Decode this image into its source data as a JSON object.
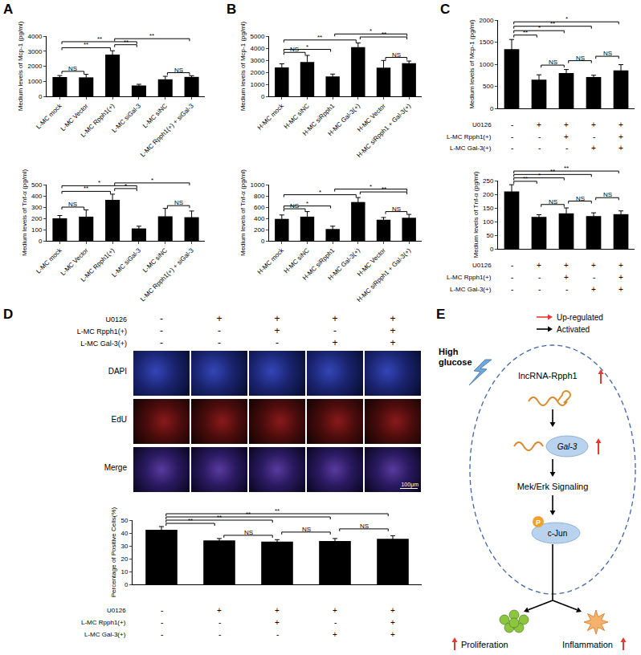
{
  "panel_labels": [
    "A",
    "B",
    "C",
    "D",
    "E"
  ],
  "chart_data": [
    {
      "type": "bar",
      "color": "#000000",
      "y_label": "Medium levels of Mcp-1 (pg/ml)",
      "categories": [
        "L-MC mock",
        "L-MC Vector",
        "L-MC Rpph1(+)",
        "L-MC siGal-3",
        "L-MC siNC",
        "L-MC Rpph1(+) + siGal-3"
      ],
      "values": [
        1280,
        1260,
        2780,
        720,
        1130,
        1290
      ],
      "errors": [
        100,
        200,
        250,
        80,
        200,
        80
      ],
      "ylim": [
        0,
        4000
      ],
      "yticks": [
        0,
        1000,
        2000,
        3000,
        4000
      ],
      "comparisons": [
        {
          "from": 0,
          "to": 1,
          "label": "NS"
        },
        {
          "from": 4,
          "to": 5,
          "label": "NS"
        },
        {
          "from": 0,
          "to": 2,
          "label": "**"
        },
        {
          "from": 2,
          "to": 3,
          "label": "**"
        },
        {
          "from": 0,
          "to": 3,
          "label": "**"
        },
        {
          "from": 2,
          "to": 5,
          "label": "**"
        }
      ]
    },
    {
      "type": "bar",
      "color": "#000000",
      "y_label": "Medium levels of Tnf-α (pg/ml)",
      "categories": [
        "L-MC mock",
        "L-MC Vector",
        "L-MC Rpph1(+)",
        "L-MC siGal-3",
        "L-MC siNC",
        "L-MC Rpph1(+) + siGal-3"
      ],
      "values": [
        200,
        215,
        365,
        110,
        218,
        210
      ],
      "errors": [
        25,
        60,
        50,
        20,
        70,
        55
      ],
      "ylim": [
        0,
        500
      ],
      "yticks": [
        0,
        100,
        200,
        300,
        400,
        500
      ],
      "comparisons": [
        {
          "from": 0,
          "to": 1,
          "label": "NS"
        },
        {
          "from": 4,
          "to": 5,
          "label": "NS"
        },
        {
          "from": 0,
          "to": 2,
          "label": "**"
        },
        {
          "from": 2,
          "to": 3,
          "label": "*"
        },
        {
          "from": 0,
          "to": 3,
          "label": "*"
        },
        {
          "from": 2,
          "to": 5,
          "label": "*"
        }
      ]
    },
    {
      "type": "bar",
      "color": "#000000",
      "y_label": "Medium levels of Mcp-1 (pg/ml)",
      "categories": [
        "H-MC mock",
        "H-MC siNC",
        "H-MC siRpph1",
        "H-MC Gal-3(+)",
        "H-MC Vector",
        "H-MC siRpph1 + Gal-3(+)"
      ],
      "values": [
        2400,
        2850,
        1650,
        4080,
        2380,
        2750
      ],
      "errors": [
        300,
        550,
        200,
        350,
        600,
        180
      ],
      "ylim": [
        0,
        5000
      ],
      "yticks": [
        0,
        1000,
        2000,
        3000,
        4000,
        5000
      ],
      "comparisons": [
        {
          "from": 0,
          "to": 1,
          "label": "NS"
        },
        {
          "from": 4,
          "to": 5,
          "label": "NS"
        },
        {
          "from": 0,
          "to": 2,
          "label": "*"
        },
        {
          "from": 0,
          "to": 3,
          "label": "**"
        },
        {
          "from": 3,
          "to": 5,
          "label": "**"
        },
        {
          "from": 2,
          "to": 5,
          "label": "*"
        }
      ]
    },
    {
      "type": "bar",
      "color": "#000000",
      "y_label": "Medium levels of Tnf-α (pg/ml)",
      "categories": [
        "H-MC mock",
        "H-MC siNC",
        "H-MC siRpph1",
        "H-MC Gal-3(+)",
        "H-MC Vector",
        "H-MC siRpph1 + Gal-3(+)"
      ],
      "values": [
        390,
        430,
        210,
        690,
        375,
        410
      ],
      "errors": [
        70,
        90,
        50,
        80,
        40,
        60
      ],
      "ylim": [
        0,
        1000
      ],
      "yticks": [
        0,
        200,
        400,
        600,
        800,
        1000
      ],
      "comparisons": [
        {
          "from": 0,
          "to": 1,
          "label": "NS"
        },
        {
          "from": 4,
          "to": 5,
          "label": "NS"
        },
        {
          "from": 0,
          "to": 2,
          "label": "*"
        },
        {
          "from": 0,
          "to": 3,
          "label": "*"
        },
        {
          "from": 3,
          "to": 5,
          "label": "**"
        },
        {
          "from": 2,
          "to": 5,
          "label": "*"
        }
      ]
    },
    {
      "type": "bar",
      "color": "#000000",
      "y_label": "Medium levels of Mcp-1 (pg/ml)",
      "tick_labels": "y",
      "categories": [
        null,
        null,
        null,
        null,
        null
      ],
      "values": [
        1340,
        650,
        800,
        710,
        860
      ],
      "errors": [
        220,
        110,
        80,
        40,
        130
      ],
      "ylim": [
        0,
        2000
      ],
      "yticks": [
        0,
        500,
        1000,
        1500,
        2000
      ],
      "conditions": [
        {
          "name": "U0126",
          "values": [
            "-",
            "+",
            "+",
            "+",
            "+"
          ]
        },
        {
          "name": "L-MC Rpph1(+)",
          "values": [
            "-",
            "-",
            "+",
            "-",
            "+"
          ]
        },
        {
          "name": "L-MC Gal-3(+)",
          "values": [
            "-",
            "-",
            "-",
            "+",
            "+"
          ]
        }
      ],
      "comparisons": [
        {
          "from": 1,
          "to": 2,
          "label": "NS"
        },
        {
          "from": 2,
          "to": 3,
          "label": "NS"
        },
        {
          "from": 3,
          "to": 4,
          "label": "NS"
        },
        {
          "from": 0,
          "to": 1,
          "label": "**"
        },
        {
          "from": 0,
          "to": 2,
          "label": "*"
        },
        {
          "from": 0,
          "to": 3,
          "label": "**"
        },
        {
          "from": 0,
          "to": 4,
          "label": "*"
        }
      ]
    },
    {
      "type": "bar",
      "color": "#000000",
      "y_label": "Medium levels of Tnf-α (pg/ml)",
      "tick_labels": "y",
      "categories": [
        null,
        null,
        null,
        null,
        null
      ],
      "values": [
        210,
        117,
        130,
        120,
        127
      ],
      "errors": [
        25,
        8,
        20,
        12,
        12
      ],
      "ylim": [
        0,
        250
      ],
      "yticks": [
        0,
        50,
        100,
        150,
        200,
        250
      ],
      "conditions": [
        {
          "name": "U0126",
          "values": [
            "-",
            "+",
            "+",
            "+",
            "+"
          ]
        },
        {
          "name": "L-MC Rpph1(+)",
          "values": [
            "-",
            "-",
            "+",
            "-",
            "+"
          ]
        },
        {
          "name": "L-MC Gal-3(+)",
          "values": [
            "-",
            "-",
            "-",
            "+",
            "+"
          ]
        }
      ],
      "comparisons": [
        {
          "from": 1,
          "to": 2,
          "label": "NS"
        },
        {
          "from": 2,
          "to": 3,
          "label": "NS"
        },
        {
          "from": 3,
          "to": 4,
          "label": "NS"
        },
        {
          "from": 0,
          "to": 1,
          "label": "**"
        },
        {
          "from": 0,
          "to": 2,
          "label": "*"
        },
        {
          "from": 0,
          "to": 3,
          "label": "**"
        },
        {
          "from": 0,
          "to": 4,
          "label": "**"
        }
      ]
    },
    {
      "type": "bar",
      "color": "#000000",
      "y_label": "Percentage of Positive Cells(%)",
      "tick_labels": "y",
      "categories": [
        null,
        null,
        null,
        null,
        null
      ],
      "values": [
        42.5,
        34.2,
        33.3,
        33.7,
        35.4
      ],
      "errors": [
        2.5,
        1.5,
        1.5,
        2,
        2.5
      ],
      "ylim": [
        0,
        50
      ],
      "yticks": [
        0,
        10,
        20,
        30,
        40,
        50
      ],
      "conditions": [
        {
          "name": "U0126",
          "values": [
            "-",
            "+",
            "+",
            "+",
            "+"
          ]
        },
        {
          "name": "L-MC Rpph1(+)",
          "values": [
            "-",
            "-",
            "+",
            "-",
            "+"
          ]
        },
        {
          "name": "L-MC Gal-3(+)",
          "values": [
            "-",
            "-",
            "-",
            "+",
            "+"
          ]
        }
      ],
      "comparisons": [
        {
          "from": 1,
          "to": 2,
          "label": "NS"
        },
        {
          "from": 2,
          "to": 3,
          "label": "NS"
        },
        {
          "from": 3,
          "to": 4,
          "label": "NS"
        },
        {
          "from": 0,
          "to": 1,
          "label": "**"
        },
        {
          "from": 0,
          "to": 2,
          "label": "**"
        },
        {
          "from": 0,
          "to": 3,
          "label": "**"
        },
        {
          "from": 0,
          "to": 4,
          "label": "**"
        }
      ]
    }
  ],
  "image_panel": {
    "conditions": [
      {
        "name": "U0126",
        "values": [
          "-",
          "+",
          "+",
          "+",
          "+"
        ]
      },
      {
        "name": "L-MC Rpph1(+)",
        "values": [
          "-",
          "-",
          "+",
          "-",
          "+"
        ]
      },
      {
        "name": "L-MC Gal-3(+)",
        "values": [
          "-",
          "-",
          "-",
          "+",
          "+"
        ]
      }
    ],
    "rows": [
      "DAPI",
      "EdU",
      "Merge"
    ],
    "scale_bar": "100μm"
  },
  "diagram": {
    "legend": [
      {
        "label": "Up-regulated",
        "color": "#e53935"
      },
      {
        "label": "Activated",
        "color": "#000000"
      }
    ],
    "stimulus": "High glucose",
    "nodes": [
      "lncRNA-Rpph1",
      "Gal-3",
      "Mek/Erk Signaling",
      "c-Jun"
    ],
    "phospho": "P",
    "outcomes": [
      "Proliferation",
      "Inflammation"
    ]
  }
}
